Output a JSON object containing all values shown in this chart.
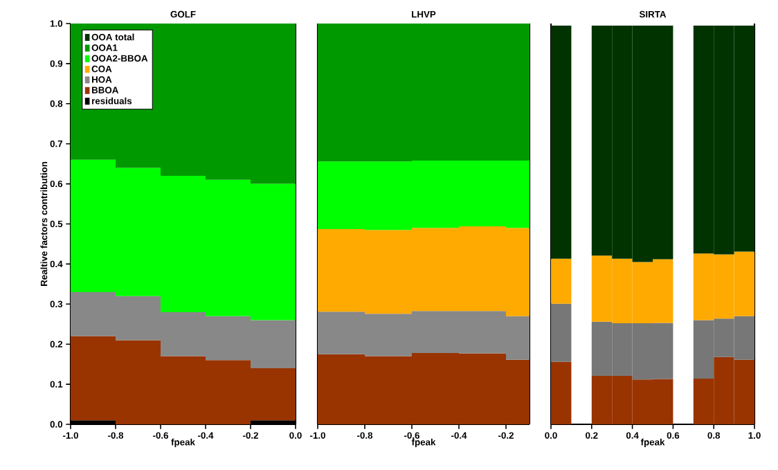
{
  "chart_data": [
    {
      "type": "bar",
      "stacked": true,
      "title": "GOLF",
      "xlabel": "fpeak",
      "ylabel": "Realtive factors contribution",
      "legend": "top left",
      "x": [
        -0.9,
        -0.7,
        -0.5,
        -0.3,
        -0.1
      ],
      "xlim": [
        -1,
        0
      ],
      "ylim": [
        0,
        1
      ],
      "xticks": [
        {
          "value": -1,
          "label": "-1.0"
        },
        -0.8,
        -0.6,
        -0.4,
        -0.2,
        {
          "value": 0,
          "label": "0.0"
        }
      ],
      "yticks": [
        {
          "value": 0,
          "label": "0.0"
        },
        0.1,
        0.2,
        0.3,
        0.4,
        0.5,
        0.6,
        0.7,
        0.8,
        0.9,
        {
          "value": 1,
          "label": "1.0"
        }
      ],
      "series": [
        {
          "name": "residuals",
          "color": "#000000",
          "values": [
            0.01,
            null,
            null,
            null,
            0.01
          ]
        },
        {
          "name": "BBOA",
          "color": "#993300",
          "values": [
            0.21,
            0.21,
            0.17,
            0.16,
            0.13
          ]
        },
        {
          "name": "HOA",
          "color": "#888888",
          "values": [
            0.11,
            0.11,
            0.11,
            0.11,
            0.12
          ]
        },
        {
          "name": "COA",
          "color": "#ffaa00",
          "values": [
            null,
            null,
            null,
            null,
            null
          ]
        },
        {
          "name": "OOA2-BBOA",
          "color": "#00ff00",
          "values": [
            0.33,
            0.32,
            0.34,
            0.34,
            0.34
          ]
        },
        {
          "name": "OOA1",
          "color": "#009900",
          "values": [
            0.34,
            0.36,
            0.38,
            0.39,
            0.4
          ]
        },
        {
          "name": "OOA total",
          "color": "#003300",
          "values": [
            null,
            null,
            null,
            null,
            null
          ]
        }
      ]
    },
    {
      "type": "bar",
      "stacked": true,
      "title": "LHVP",
      "xlabel": "fpeak",
      "tick_labels": "x",
      "x": [
        -0.9,
        -0.7,
        -0.5,
        -0.3,
        -0.15
      ],
      "xlim": [
        -1,
        -0.1
      ],
      "ylim": [
        0,
        1
      ],
      "xticks": [
        {
          "value": -1,
          "label": "-1.0"
        },
        -0.8,
        -0.6,
        -0.4,
        -0.2
      ],
      "series": [
        {
          "color": "#993300",
          "values": [
            0.175,
            0.17,
            0.178,
            0.177,
            0.161
          ]
        },
        {
          "color": "#888888",
          "values": [
            0.106,
            0.106,
            0.105,
            0.106,
            0.109
          ]
        },
        {
          "color": "#ffaa00",
          "values": [
            0.206,
            0.209,
            0.207,
            0.211,
            0.22
          ]
        },
        {
          "color": "#00ff00",
          "values": [
            0.169,
            0.171,
            0.168,
            0.164,
            0.168
          ]
        },
        {
          "color": "#009900",
          "values": [
            0.344,
            0.344,
            0.342,
            0.342,
            0.342
          ]
        }
      ]
    },
    {
      "type": "bar",
      "stacked": true,
      "title": "SIRTA",
      "xlabel": "fpeak",
      "tick_labels": "x",
      "x": [
        0.05,
        0.25,
        0.35,
        0.45,
        0.55,
        0.75,
        0.85,
        0.95
      ],
      "xlim": [
        0,
        1
      ],
      "ylim": [
        0,
        1
      ],
      "xticks": [
        {
          "value": 0,
          "label": "0.0"
        },
        0.2,
        0.4,
        0.6,
        0.8,
        {
          "value": 1,
          "label": "1.0"
        }
      ],
      "series": [
        {
          "color": "#993300",
          "values": [
            0.156,
            0.121,
            0.121,
            0.112,
            0.113,
            0.114,
            0.168,
            0.161
          ]
        },
        {
          "color": "#777777",
          "values": [
            0.145,
            0.135,
            0.131,
            0.14,
            0.14,
            0.146,
            0.096,
            0.109
          ]
        },
        {
          "color": "#ffaa00",
          "values": [
            0.112,
            0.165,
            0.161,
            0.153,
            0.159,
            0.166,
            0.16,
            0.161
          ]
        },
        {
          "color": "#003300",
          "values": [
            0.582,
            0.574,
            0.582,
            0.59,
            0.583,
            0.569,
            0.571,
            0.564
          ]
        }
      ]
    }
  ]
}
